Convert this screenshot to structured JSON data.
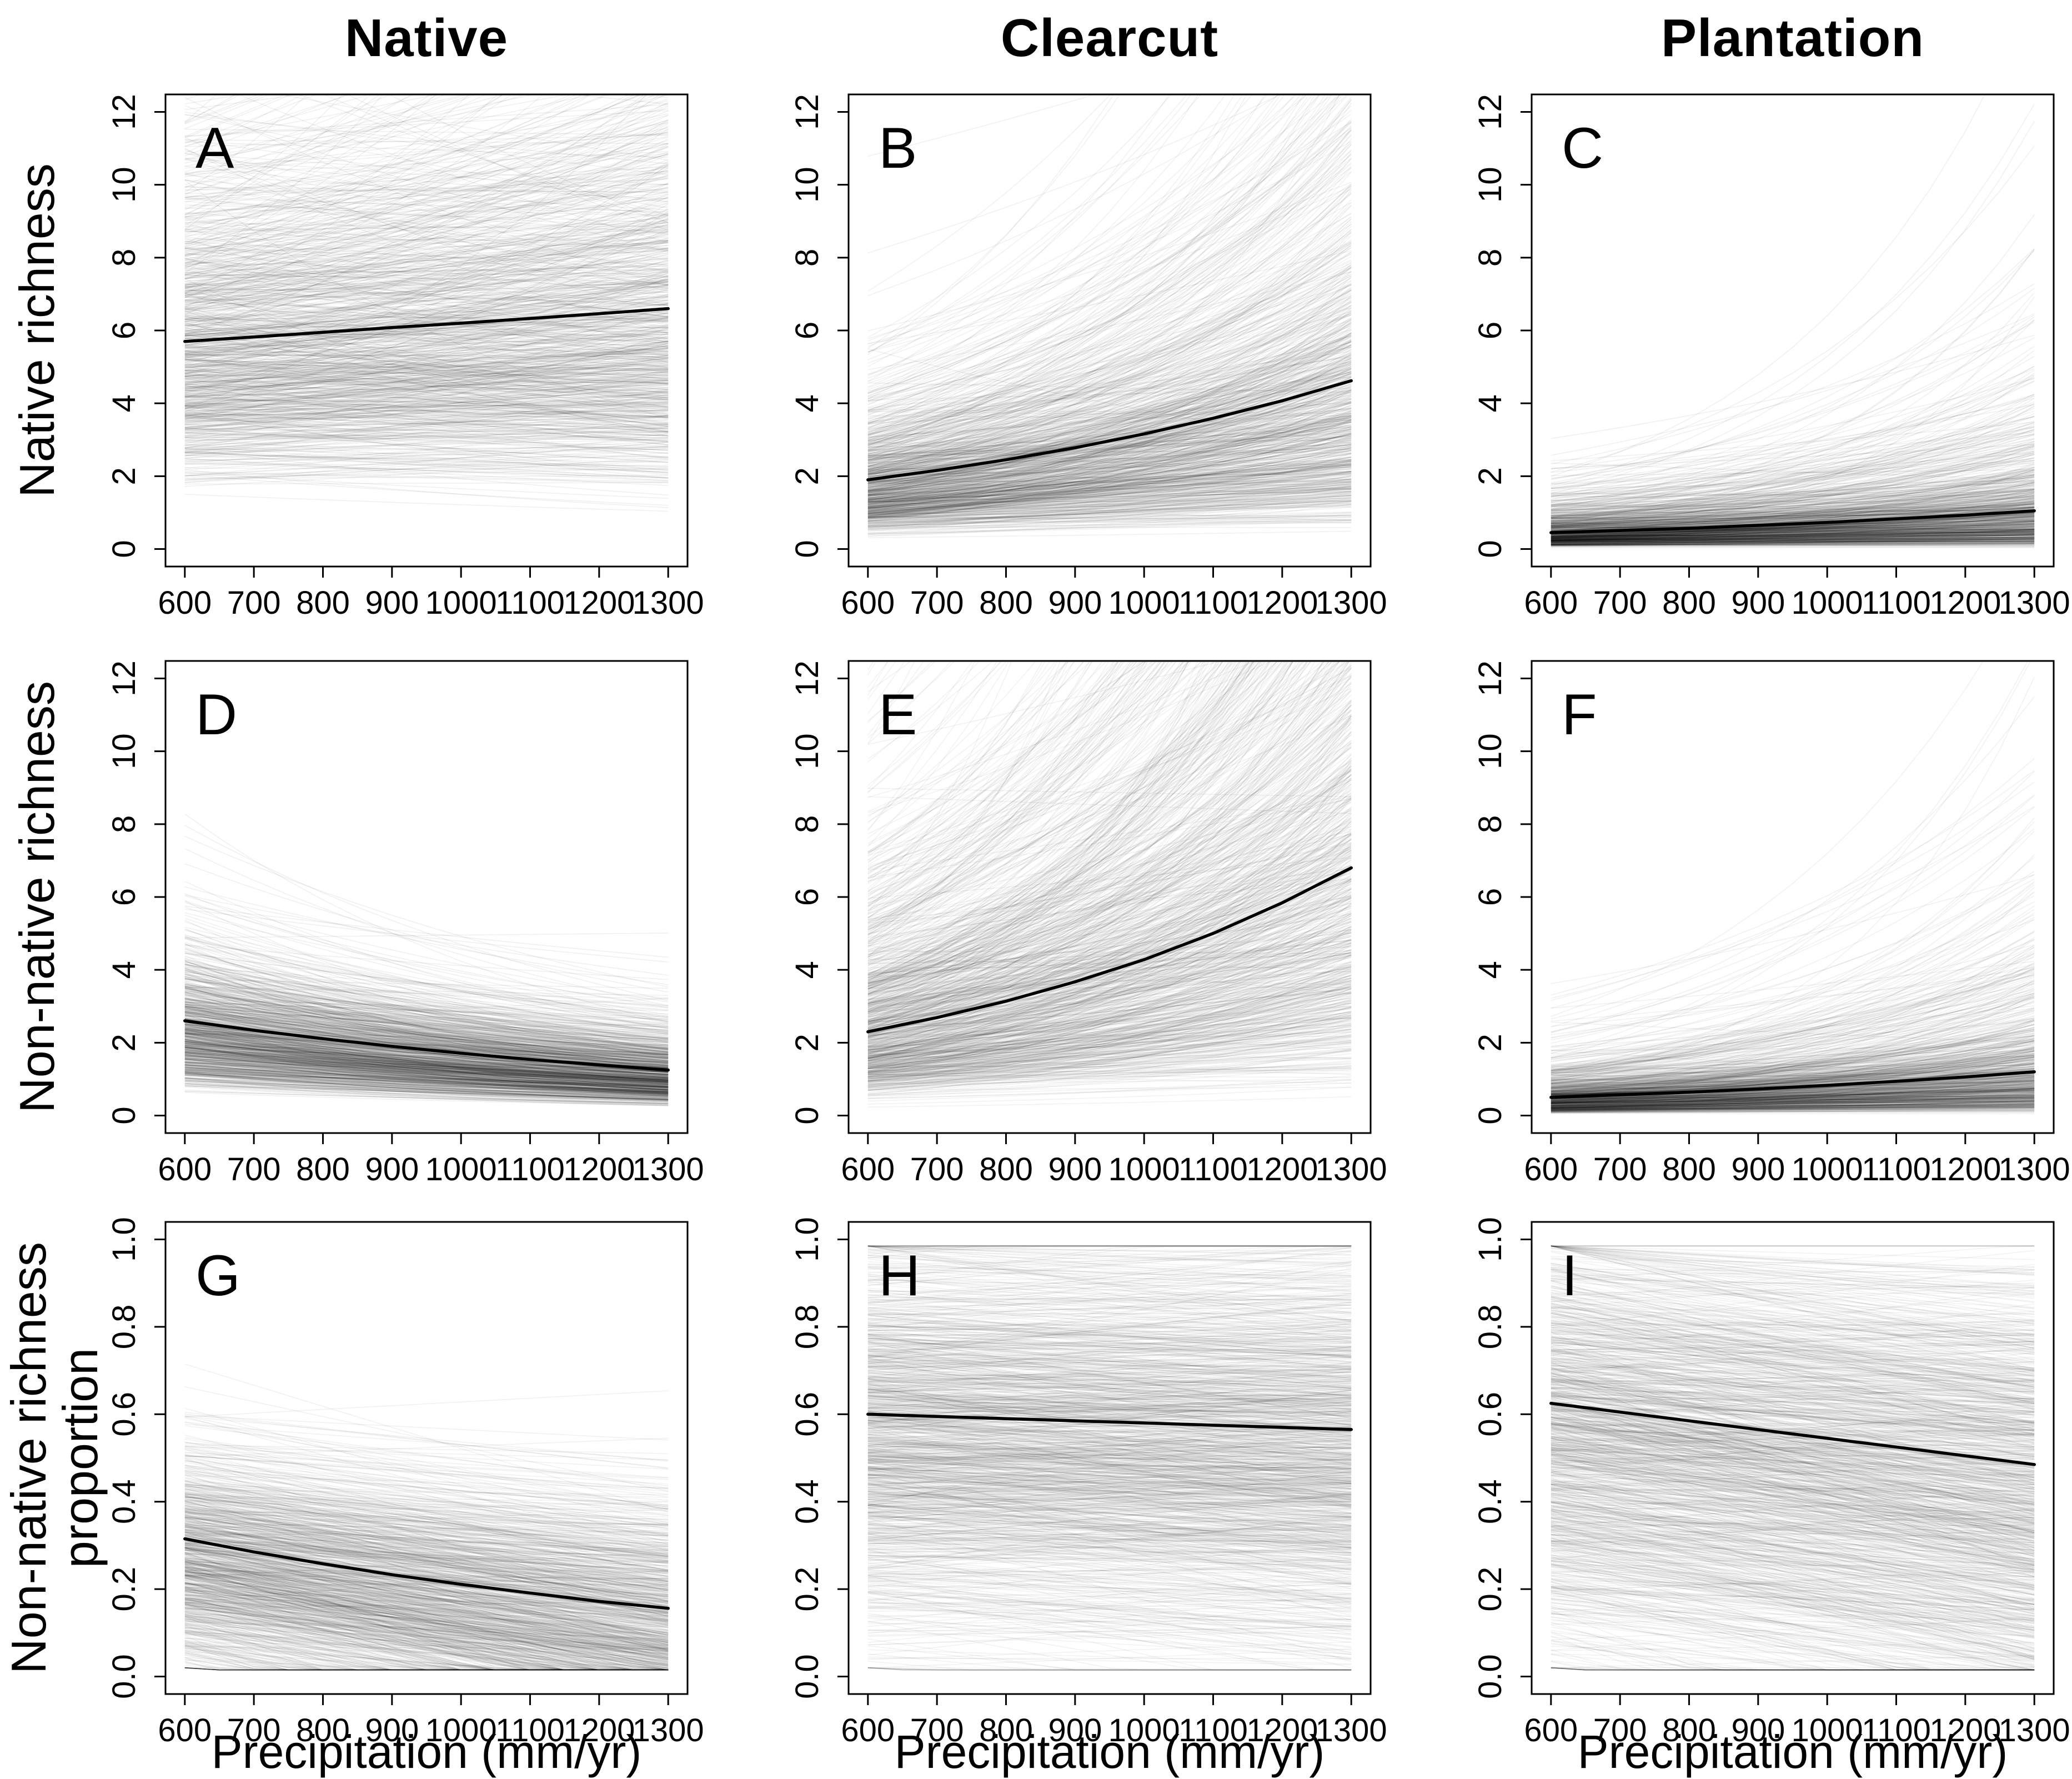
{
  "figure": {
    "columns": [
      "Native",
      "Clearcut",
      "Plantation"
    ],
    "row_labels": [
      "Native richness",
      "Non-native richness",
      "Non-native richness\nproportion"
    ],
    "x_label": "Precipitation (mm/yr)",
    "x_ticks": [
      600,
      700,
      800,
      900,
      1000,
      1100,
      1200,
      1300
    ],
    "x_range": [
      600,
      1300
    ],
    "line_color": "#000000",
    "draw_color": "#000000",
    "grid": "off",
    "legend": "none"
  },
  "chart_data": [
    {
      "type": "line",
      "letter": "A",
      "row": 0,
      "col": 0,
      "column": "Native",
      "ylabel": "Native richness",
      "xlabel": "Precipitation (mm/yr)",
      "x": [
        600,
        700,
        800,
        900,
        1000,
        1100,
        1200,
        1300
      ],
      "mean": [
        5.7,
        5.82,
        5.95,
        6.08,
        6.2,
        6.33,
        6.46,
        6.6
      ],
      "ylim": [
        0,
        12
      ],
      "yticks": [
        0,
        2,
        4,
        6,
        8,
        10,
        12
      ],
      "ytick_decimals": 0,
      "ensemble": {
        "model": "exp",
        "n": 900,
        "start_median": 5.7,
        "start_sigma": 0.45,
        "trend_mean": 0.00021,
        "trend_sd": 0.00045,
        "alpha": 0.06
      }
    },
    {
      "type": "line",
      "letter": "B",
      "row": 0,
      "col": 1,
      "column": "Clearcut",
      "ylabel": "Native richness",
      "xlabel": "Precipitation (mm/yr)",
      "x": [
        600,
        700,
        800,
        900,
        1000,
        1100,
        1200,
        1300
      ],
      "mean": [
        1.9,
        2.16,
        2.45,
        2.78,
        3.16,
        3.59,
        4.07,
        4.62
      ],
      "ylim": [
        0,
        12
      ],
      "yticks": [
        0,
        2,
        4,
        6,
        8,
        10,
        12
      ],
      "ytick_decimals": 0,
      "ensemble": {
        "model": "exp",
        "n": 850,
        "start_median": 1.7,
        "start_sigma": 0.55,
        "trend_mean": 0.00126,
        "trend_sd": 0.0006,
        "alpha": 0.055
      }
    },
    {
      "type": "line",
      "letter": "C",
      "row": 0,
      "col": 2,
      "column": "Plantation",
      "ylabel": "Native richness",
      "xlabel": "Precipitation (mm/yr)",
      "x": [
        600,
        700,
        800,
        900,
        1000,
        1100,
        1200,
        1300
      ],
      "mean": [
        0.45,
        0.51,
        0.57,
        0.65,
        0.73,
        0.83,
        0.93,
        1.05
      ],
      "ylim": [
        0,
        12
      ],
      "yticks": [
        0,
        2,
        4,
        6,
        8,
        10,
        12
      ],
      "ytick_decimals": 0,
      "ensemble": {
        "model": "exp",
        "n": 750,
        "start_median": 0.42,
        "start_sigma": 0.75,
        "trend_mean": 0.00121,
        "trend_sd": 0.0008,
        "alpha": 0.06
      }
    },
    {
      "type": "line",
      "letter": "D",
      "row": 1,
      "col": 0,
      "column": "Native",
      "ylabel": "Non-native richness",
      "xlabel": "Precipitation (mm/yr)",
      "x": [
        600,
        700,
        800,
        900,
        1000,
        1100,
        1200,
        1300
      ],
      "mean": [
        2.6,
        2.34,
        2.11,
        1.9,
        1.71,
        1.54,
        1.39,
        1.25
      ],
      "ylim": [
        0,
        12
      ],
      "yticks": [
        0,
        2,
        4,
        6,
        8,
        10,
        12
      ],
      "ytick_decimals": 0,
      "ensemble": {
        "model": "exp",
        "n": 850,
        "start_median": 2.3,
        "start_sigma": 0.45,
        "trend_mean": -0.00105,
        "trend_sd": 0.0004,
        "alpha": 0.06
      }
    },
    {
      "type": "line",
      "letter": "E",
      "row": 1,
      "col": 1,
      "column": "Clearcut",
      "ylabel": "Non-native richness",
      "xlabel": "Precipitation (mm/yr)",
      "x": [
        600,
        700,
        800,
        900,
        1000,
        1100,
        1200,
        1300
      ],
      "mean": [
        2.3,
        2.69,
        3.14,
        3.67,
        4.28,
        5.0,
        5.84,
        6.8
      ],
      "ylim": [
        0,
        12
      ],
      "yticks": [
        0,
        2,
        4,
        6,
        8,
        10,
        12
      ],
      "ytick_decimals": 0,
      "ensemble": {
        "model": "exp",
        "n": 950,
        "start_median": 2.5,
        "start_sigma": 0.65,
        "trend_mean": 0.00155,
        "trend_sd": 0.0007,
        "alpha": 0.05
      }
    },
    {
      "type": "line",
      "letter": "F",
      "row": 1,
      "col": 2,
      "column": "Plantation",
      "ylabel": "Non-native richness",
      "xlabel": "Precipitation (mm/yr)",
      "x": [
        600,
        700,
        800,
        900,
        1000,
        1100,
        1200,
        1300
      ],
      "mean": [
        0.5,
        0.57,
        0.64,
        0.73,
        0.83,
        0.94,
        1.06,
        1.2
      ],
      "ylim": [
        0,
        12
      ],
      "yticks": [
        0,
        2,
        4,
        6,
        8,
        10,
        12
      ],
      "ytick_decimals": 0,
      "ensemble": {
        "model": "exp",
        "n": 750,
        "start_median": 0.45,
        "start_sigma": 0.75,
        "trend_mean": 0.00125,
        "trend_sd": 0.0008,
        "alpha": 0.055
      }
    },
    {
      "type": "line",
      "letter": "G",
      "row": 2,
      "col": 0,
      "column": "Native",
      "ylabel": "Non-native richness proportion",
      "xlabel": "Precipitation (mm/yr)",
      "x": [
        600,
        700,
        800,
        900,
        1000,
        1100,
        1200,
        1300
      ],
      "mean": [
        0.315,
        0.285,
        0.258,
        0.233,
        0.211,
        0.191,
        0.172,
        0.156
      ],
      "ylim": [
        0,
        1
      ],
      "yticks": [
        0,
        0.2,
        0.4,
        0.6,
        0.8,
        1
      ],
      "ytick_decimals": 1,
      "ensemble": {
        "model": "linear",
        "n": 900,
        "start_median": 0.27,
        "start_sigma": 0.13,
        "trend_mean": -0.000229,
        "trend_sd": 0.00012,
        "alpha": 0.055
      }
    },
    {
      "type": "line",
      "letter": "H",
      "row": 2,
      "col": 1,
      "column": "Clearcut",
      "ylabel": "Non-native richness proportion",
      "xlabel": "Precipitation (mm/yr)",
      "x": [
        600,
        700,
        800,
        900,
        1000,
        1100,
        1200,
        1300
      ],
      "mean": [
        0.6,
        0.595,
        0.59,
        0.585,
        0.58,
        0.575,
        0.57,
        0.565
      ],
      "ylim": [
        0,
        1
      ],
      "yticks": [
        0,
        0.2,
        0.4,
        0.6,
        0.8,
        1
      ],
      "ytick_decimals": 1,
      "ensemble": {
        "model": "linear",
        "n": 1100,
        "start_median": 0.55,
        "start_sigma": 0.23,
        "trend_mean": -5e-05,
        "trend_sd": 0.00013,
        "alpha": 0.05
      }
    },
    {
      "type": "line",
      "letter": "I",
      "row": 2,
      "col": 2,
      "column": "Plantation",
      "ylabel": "Non-native richness proportion",
      "xlabel": "Precipitation (mm/yr)",
      "x": [
        600,
        700,
        800,
        900,
        1000,
        1100,
        1200,
        1300
      ],
      "mean": [
        0.625,
        0.605,
        0.585,
        0.565,
        0.545,
        0.525,
        0.505,
        0.485
      ],
      "ylim": [
        0,
        1
      ],
      "yticks": [
        0,
        0.2,
        0.4,
        0.6,
        0.8,
        1
      ],
      "ytick_decimals": 1,
      "ensemble": {
        "model": "linear",
        "n": 1100,
        "start_median": 0.55,
        "start_sigma": 0.24,
        "trend_mean": -0.0002,
        "trend_sd": 0.00016,
        "alpha": 0.05
      }
    }
  ]
}
